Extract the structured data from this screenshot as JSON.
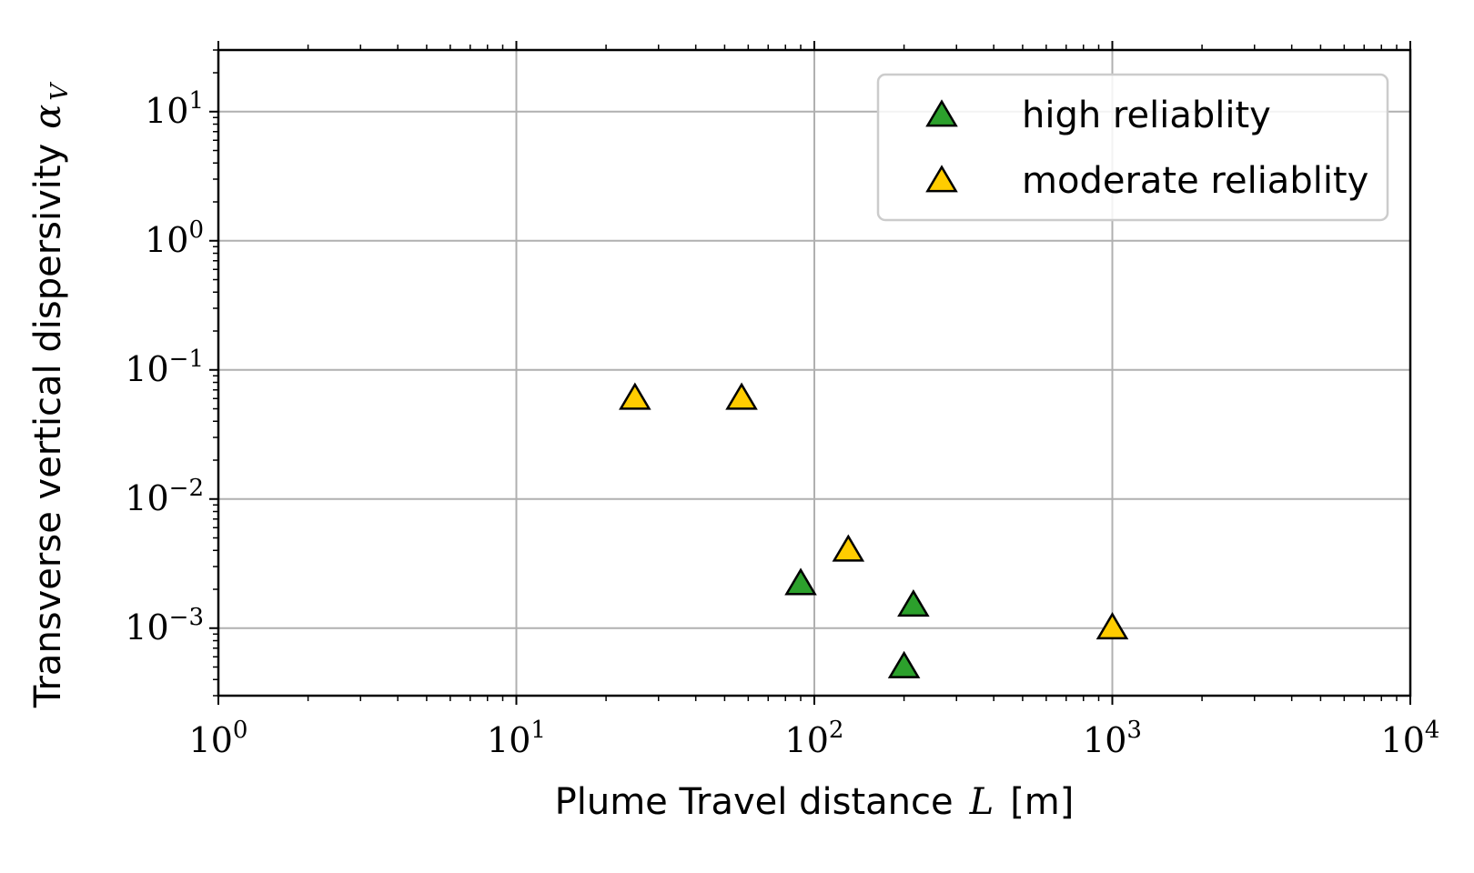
{
  "chart_data": {
    "type": "scatter",
    "xlabel": "Plume Travel distance",
    "xlabel_symbol": "L",
    "xlabel_unit": "[m]",
    "ylabel": "Transverse vertical dispersivity",
    "ylabel_symbol": "α",
    "ylabel_subscript": "V",
    "xscale": "log",
    "yscale": "log",
    "xlim": [
      1,
      10000
    ],
    "ylim": [
      0.0003,
      30
    ],
    "grid": true,
    "legend_position": "top-right",
    "x_ticks": [
      {
        "base": "10",
        "exp": "0"
      },
      {
        "base": "10",
        "exp": "1"
      },
      {
        "base": "10",
        "exp": "2"
      },
      {
        "base": "10",
        "exp": "3"
      },
      {
        "base": "10",
        "exp": "4"
      }
    ],
    "y_ticks": [
      {
        "base": "10",
        "exp": "−3"
      },
      {
        "base": "10",
        "exp": "−2"
      },
      {
        "base": "10",
        "exp": "−1"
      },
      {
        "base": "10",
        "exp": "0"
      },
      {
        "base": "10",
        "exp": "1"
      }
    ],
    "series": [
      {
        "name": "high reliablity",
        "color": "#2ca02c",
        "marker": "triangle",
        "points": [
          {
            "x": 90,
            "y": 0.0022
          },
          {
            "x": 215,
            "y": 0.0015
          },
          {
            "x": 200,
            "y": 0.0005
          }
        ]
      },
      {
        "name": "moderate reliablity",
        "color": "#ffcc00",
        "marker": "triangle",
        "points": [
          {
            "x": 25,
            "y": 0.06
          },
          {
            "x": 57,
            "y": 0.06
          },
          {
            "x": 130,
            "y": 0.004
          },
          {
            "x": 1000,
            "y": 0.001
          }
        ]
      }
    ]
  }
}
